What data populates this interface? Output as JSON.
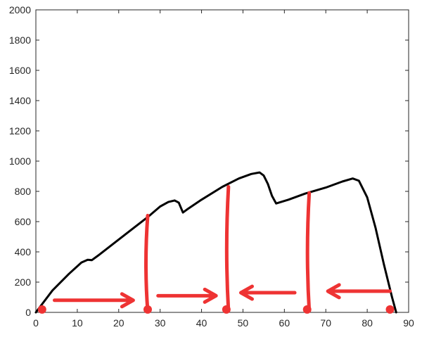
{
  "chart_data": {
    "type": "line",
    "title": "",
    "xlabel": "",
    "ylabel": "",
    "xlim": [
      0,
      90
    ],
    "ylim": [
      0,
      2000
    ],
    "grid": false,
    "x_ticks": [
      0,
      10,
      20,
      30,
      40,
      50,
      60,
      70,
      80,
      90
    ],
    "y_ticks": [
      0,
      200,
      400,
      600,
      800,
      1000,
      1200,
      1400,
      1600,
      1800,
      2000
    ],
    "series": [
      {
        "color": "#000000",
        "x": [
          0,
          4,
          8,
          11,
          12.5,
          13.5,
          15,
          19,
          23,
          27,
          30,
          32,
          33.5,
          34.5,
          35.5,
          36.5,
          40,
          45,
          49,
          52,
          54,
          55,
          56,
          57,
          58,
          61,
          65,
          70,
          74,
          76.5,
          78,
          80,
          82,
          84,
          86,
          87
        ],
        "y": [
          0,
          145,
          255,
          330,
          348,
          345,
          375,
          460,
          545,
          630,
          700,
          730,
          740,
          725,
          660,
          680,
          745,
          830,
          885,
          915,
          925,
          905,
          850,
          770,
          720,
          745,
          785,
          825,
          865,
          885,
          870,
          760,
          560,
          320,
          100,
          0
        ]
      }
    ]
  },
  "annotations": {
    "color": "#ee3333",
    "vertical_lines": [
      {
        "x": 27,
        "y_top": 640
      },
      {
        "x": 46.5,
        "y_top": 830
      },
      {
        "x": 66,
        "y_top": 790
      }
    ],
    "points": [
      {
        "x": 1.5,
        "y": 10
      },
      {
        "x": 27,
        "y": 10
      },
      {
        "x": 46,
        "y": 10
      },
      {
        "x": 65.5,
        "y": 10
      },
      {
        "x": 85.5,
        "y": 10
      }
    ],
    "arrows": [
      {
        "from_x": 4.5,
        "to_x": 23.5,
        "y": 80,
        "direction": "right"
      },
      {
        "from_x": 29.5,
        "to_x": 43.5,
        "y": 110,
        "direction": "right"
      },
      {
        "from_x": 62.5,
        "to_x": 49.5,
        "y": 130,
        "direction": "left"
      },
      {
        "from_x": 85.5,
        "to_x": 70.5,
        "y": 140,
        "direction": "left"
      }
    ]
  }
}
